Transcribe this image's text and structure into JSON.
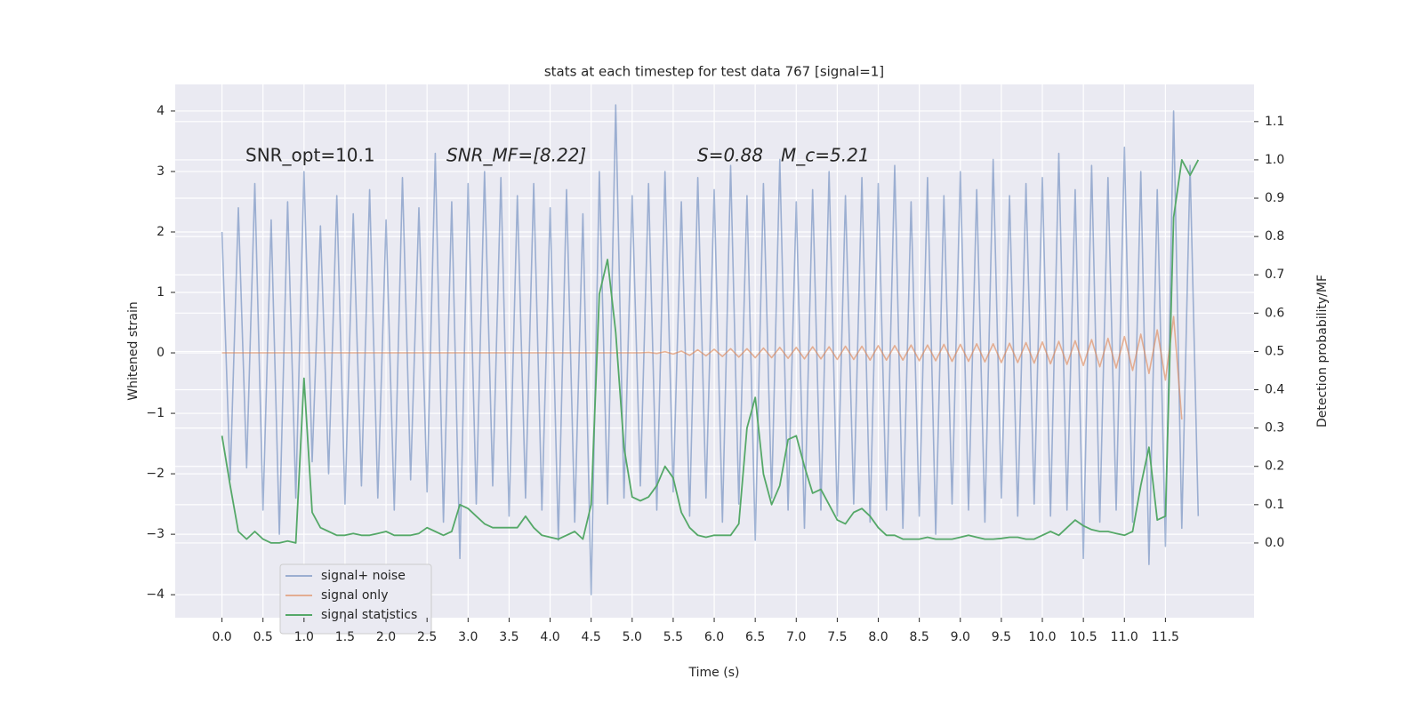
{
  "chart_data": {
    "type": "line",
    "title": "stats at each timestep for test data 767 [signal=1]",
    "x_label": "Time (s)",
    "y_label": "Whitened strain",
    "y2_label": "Detection probability/MF",
    "annotations": [
      "SNR_opt=10.1",
      "SNR_MF=[8.22]",
      "S=0.88",
      "M_c=5.21"
    ],
    "grid": true,
    "legend": "lower left",
    "xlim": [
      -0.57,
      12.58
    ],
    "ylim": [
      -4.38,
      4.44
    ],
    "y2lim": [
      -0.195,
      1.197
    ],
    "xticks": [
      {
        "value": 0,
        "label": "0.0"
      },
      {
        "value": 0.5,
        "label": "0.5"
      },
      {
        "value": 1,
        "label": "1.0"
      },
      {
        "value": 1.5,
        "label": "1.5"
      },
      {
        "value": 2,
        "label": "2.0"
      },
      {
        "value": 2.5,
        "label": "2.5"
      },
      {
        "value": 3,
        "label": "3.0"
      },
      {
        "value": 3.5,
        "label": "3.5"
      },
      {
        "value": 4,
        "label": "4.0"
      },
      {
        "value": 4.5,
        "label": "4.5"
      },
      {
        "value": 5,
        "label": "5.0"
      },
      {
        "value": 5.5,
        "label": "5.5"
      },
      {
        "value": 6,
        "label": "6.0"
      },
      {
        "value": 6.5,
        "label": "6.5"
      },
      {
        "value": 7,
        "label": "7.0"
      },
      {
        "value": 7.5,
        "label": "7.5"
      },
      {
        "value": 8,
        "label": "8.0"
      },
      {
        "value": 8.5,
        "label": "8.5"
      },
      {
        "value": 9,
        "label": "9.0"
      },
      {
        "value": 9.5,
        "label": "9.5"
      },
      {
        "value": 10,
        "label": "10.0"
      },
      {
        "value": 10.5,
        "label": "10.5"
      },
      {
        "value": 11,
        "label": "11.0"
      },
      {
        "value": 11.5,
        "label": "11.5"
      }
    ],
    "yticks": [
      {
        "value": -4,
        "label": "−4"
      },
      {
        "value": -3,
        "label": "−3"
      },
      {
        "value": -2,
        "label": "−2"
      },
      {
        "value": -1,
        "label": "−1"
      },
      0,
      1,
      2,
      3,
      4
    ],
    "y2ticks": [
      {
        "value": 0,
        "label": "0.0"
      },
      {
        "value": 0.1,
        "label": "0.1"
      },
      {
        "value": 0.2,
        "label": "0.2"
      },
      {
        "value": 0.3,
        "label": "0.3"
      },
      {
        "value": 0.4,
        "label": "0.4"
      },
      {
        "value": 0.5,
        "label": "0.5"
      },
      {
        "value": 0.6,
        "label": "0.6"
      },
      {
        "value": 0.7,
        "label": "0.7"
      },
      {
        "value": 0.8,
        "label": "0.8"
      },
      {
        "value": 0.9,
        "label": "0.9"
      },
      {
        "value": 1,
        "label": "1.0"
      },
      {
        "value": 1.1,
        "label": "1.1"
      }
    ],
    "x": [
      0,
      0.1,
      0.2,
      0.3,
      0.4,
      0.5,
      0.6,
      0.7,
      0.8,
      0.9,
      1,
      1.1,
      1.2,
      1.3,
      1.4,
      1.5,
      1.6,
      1.7,
      1.8,
      1.9,
      2,
      2.1,
      2.2,
      2.3,
      2.4,
      2.5,
      2.6,
      2.7,
      2.8,
      2.9,
      3,
      3.1,
      3.2,
      3.3,
      3.4,
      3.5,
      3.6,
      3.7,
      3.8,
      3.9,
      4,
      4.1,
      4.2,
      4.3,
      4.4,
      4.5,
      4.6,
      4.7,
      4.8,
      4.9,
      5,
      5.1,
      5.2,
      5.3,
      5.4,
      5.5,
      5.6,
      5.7,
      5.8,
      5.9,
      6,
      6.1,
      6.2,
      6.3,
      6.4,
      6.5,
      6.6,
      6.7,
      6.8,
      6.9,
      7,
      7.1,
      7.2,
      7.3,
      7.4,
      7.5,
      7.6,
      7.7,
      7.8,
      7.9,
      8,
      8.1,
      8.2,
      8.3,
      8.4,
      8.5,
      8.6,
      8.7,
      8.8,
      8.9,
      9,
      9.1,
      9.2,
      9.3,
      9.4,
      9.5,
      9.6,
      9.7,
      9.8,
      9.9,
      10,
      10.1,
      10.2,
      10.3,
      10.4,
      10.5,
      10.6,
      10.7,
      10.8,
      10.9,
      11,
      11.1,
      11.2,
      11.3,
      11.4,
      11.5,
      11.6,
      11.7,
      11.8,
      11.9
    ],
    "series": [
      {
        "name": "signal+ noise",
        "color": "#4c72b0",
        "values": [
          2.0,
          -2.1,
          2.4,
          -1.9,
          2.8,
          -2.6,
          2.2,
          -3.0,
          2.5,
          -2.4,
          3.0,
          -1.8,
          2.1,
          -2.0,
          2.6,
          -2.5,
          2.3,
          -2.2,
          2.7,
          -2.4,
          2.2,
          -2.6,
          2.9,
          -2.1,
          2.4,
          -2.3,
          3.3,
          -2.8,
          2.5,
          -3.4,
          2.8,
          -2.5,
          3.0,
          -2.2,
          2.9,
          -2.7,
          2.6,
          -2.4,
          2.8,
          -2.6,
          2.4,
          -3.1,
          2.7,
          -2.8,
          2.3,
          -4.0,
          3.0,
          -2.5,
          4.1,
          -2.4,
          2.6,
          -2.2,
          2.8,
          -2.6,
          3.0,
          -2.3,
          2.5,
          -2.7,
          2.9,
          -2.4,
          2.7,
          -2.8,
          3.1,
          -2.5,
          2.6,
          -3.1,
          2.8,
          -2.4,
          3.2,
          -2.6,
          2.5,
          -2.9,
          2.7,
          -2.6,
          3.0,
          -2.7,
          2.6,
          -2.5,
          2.9,
          -2.8,
          2.8,
          -2.6,
          3.1,
          -2.9,
          2.5,
          -2.7,
          2.9,
          -3.0,
          2.6,
          -2.5,
          3.0,
          -2.6,
          2.7,
          -2.8,
          3.2,
          -2.4,
          2.6,
          -2.7,
          2.8,
          -2.5,
          2.9,
          -2.7,
          3.3,
          -2.6,
          2.7,
          -3.4,
          3.1,
          -2.8,
          2.9,
          -2.6,
          3.4,
          -2.8,
          3.0,
          -3.5,
          2.7,
          -3.2,
          4.0,
          -2.9,
          3.1,
          -2.7
        ]
      },
      {
        "name": "signal only",
        "color": "#dd8452",
        "values": [
          0,
          0,
          0,
          0,
          0,
          0,
          0,
          0,
          0,
          0,
          0,
          0,
          0,
          0,
          0,
          0,
          0,
          0,
          0,
          0,
          0,
          0,
          0,
          0,
          0,
          0,
          0,
          0,
          0,
          0,
          0,
          0,
          0,
          0,
          0,
          0,
          0,
          0,
          0,
          0,
          0,
          0,
          0,
          0,
          0,
          0,
          0,
          0,
          0,
          0,
          0,
          0,
          0.01,
          -0.01,
          0.02,
          -0.02,
          0.03,
          -0.04,
          0.05,
          -0.05,
          0.06,
          -0.06,
          0.07,
          -0.07,
          0.07,
          -0.08,
          0.08,
          -0.08,
          0.09,
          -0.09,
          0.09,
          -0.1,
          0.1,
          -0.1,
          0.1,
          -0.11,
          0.11,
          -0.11,
          0.11,
          -0.12,
          0.12,
          -0.12,
          0.12,
          -0.12,
          0.13,
          -0.13,
          0.13,
          -0.13,
          0.14,
          -0.14,
          0.14,
          -0.14,
          0.15,
          -0.15,
          0.15,
          -0.16,
          0.16,
          -0.16,
          0.17,
          -0.17,
          0.18,
          -0.18,
          0.19,
          -0.19,
          0.2,
          -0.21,
          0.22,
          -0.23,
          0.24,
          -0.25,
          0.27,
          -0.29,
          0.31,
          -0.34,
          0.38,
          -0.45,
          0.6,
          -1.1,
          null,
          null
        ]
      },
      {
        "name": "signal statistics",
        "color": "#55a868",
        "axis": "y2",
        "values": [
          0.28,
          0.15,
          0.03,
          0.01,
          0.03,
          0.01,
          0.0,
          0.0,
          0.005,
          0.0,
          0.43,
          0.08,
          0.04,
          0.03,
          0.02,
          0.02,
          0.025,
          0.02,
          0.02,
          0.025,
          0.03,
          0.02,
          0.02,
          0.02,
          0.025,
          0.04,
          0.03,
          0.02,
          0.03,
          0.1,
          0.09,
          0.07,
          0.05,
          0.04,
          0.04,
          0.04,
          0.04,
          0.07,
          0.04,
          0.02,
          0.015,
          0.01,
          0.02,
          0.03,
          0.01,
          0.1,
          0.65,
          0.74,
          0.55,
          0.25,
          0.12,
          0.11,
          0.12,
          0.15,
          0.2,
          0.17,
          0.08,
          0.04,
          0.02,
          0.015,
          0.02,
          0.02,
          0.02,
          0.05,
          0.3,
          0.38,
          0.18,
          0.1,
          0.15,
          0.27,
          0.28,
          0.2,
          0.13,
          0.14,
          0.1,
          0.06,
          0.05,
          0.08,
          0.09,
          0.07,
          0.04,
          0.02,
          0.02,
          0.01,
          0.01,
          0.01,
          0.015,
          0.01,
          0.01,
          0.01,
          0.015,
          0.02,
          0.015,
          0.01,
          0.01,
          0.012,
          0.015,
          0.015,
          0.01,
          0.01,
          0.02,
          0.03,
          0.02,
          0.04,
          0.06,
          0.045,
          0.035,
          0.03,
          0.03,
          0.025,
          0.02,
          0.03,
          0.15,
          0.25,
          0.06,
          0.07,
          0.85,
          1.0,
          0.96,
          1.0
        ]
      }
    ]
  }
}
